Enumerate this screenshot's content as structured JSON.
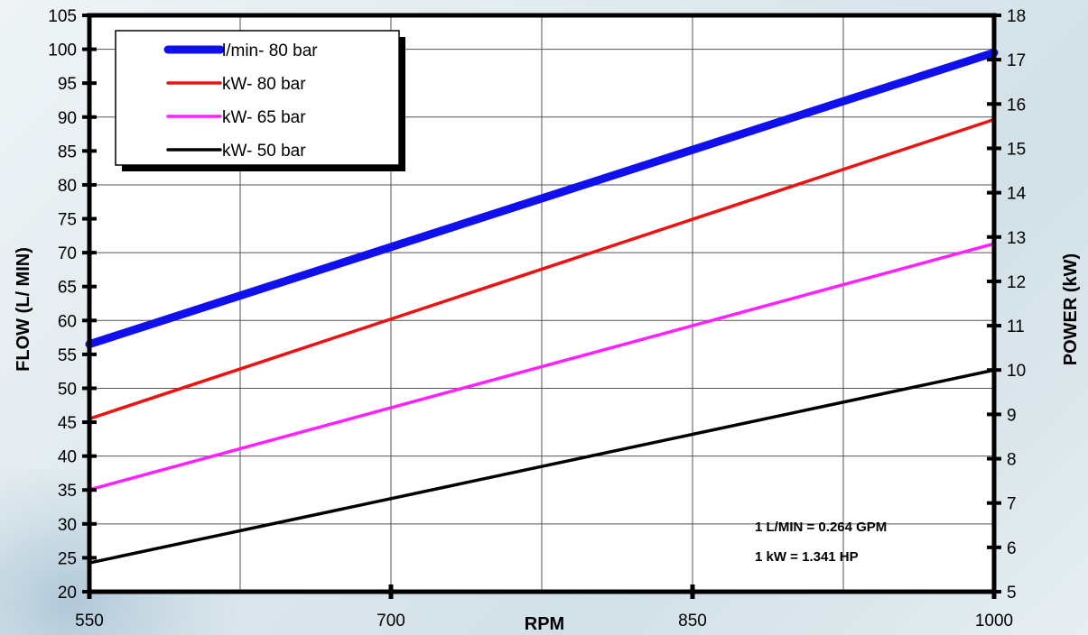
{
  "chart_data": {
    "type": "line",
    "xlabel": "RPM",
    "ylabel_left": "FLOW  (L/ MIN)",
    "ylabel_right": "POWER  (kW)",
    "xlim": [
      550,
      1000
    ],
    "x_ticks": [
      550,
      700,
      850,
      1000
    ],
    "ylim_left": [
      20,
      105
    ],
    "y_ticks_left": [
      20,
      25,
      30,
      35,
      40,
      45,
      50,
      55,
      60,
      65,
      70,
      75,
      80,
      85,
      90,
      95,
      100,
      105
    ],
    "ylim_right": [
      5,
      18
    ],
    "y_ticks_right": [
      5,
      6,
      7,
      8,
      9,
      10,
      11,
      12,
      13,
      14,
      15,
      16,
      17,
      18
    ],
    "grid": true,
    "legend_position": "top-left",
    "series": [
      {
        "name": "l/min- 80 bar",
        "axis": "left",
        "color": "#1010ee",
        "x": [
          550,
          1000
        ],
        "y": [
          56.5,
          99.5
        ]
      },
      {
        "name": "kW- 80 bar",
        "axis": "right",
        "color": "#ee1111",
        "x": [
          550,
          1000
        ],
        "y": [
          8.9,
          15.65
        ]
      },
      {
        "name": "kW- 65 bar",
        "axis": "right",
        "color": "#ff22ff",
        "x": [
          550,
          1000
        ],
        "y": [
          7.3,
          12.85
        ]
      },
      {
        "name": "kW- 50 bar",
        "axis": "right",
        "color": "#000000",
        "x": [
          550,
          1000
        ],
        "y": [
          5.65,
          10.0
        ]
      }
    ],
    "annotations": [
      "1 L/MIN = 0.264 GPM",
      "1 kW = 1.341 HP"
    ]
  }
}
